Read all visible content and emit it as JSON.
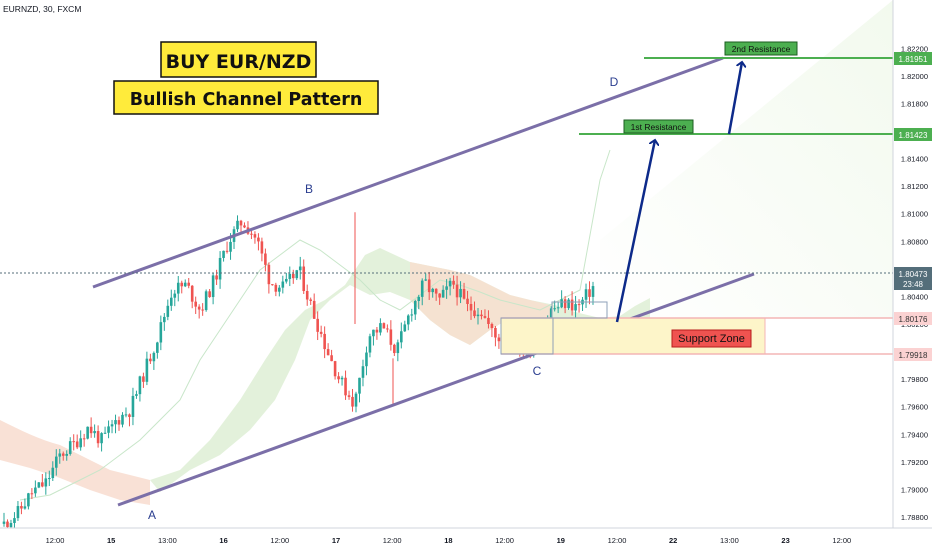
{
  "header": {
    "symbol_label": "EURNZD, 30, FXCM"
  },
  "annotations": {
    "title": "BUY EUR/NZD",
    "subtitle": "Bullish Channel Pattern",
    "first_resistance": "1st Resistance",
    "second_resistance": "2nd Resistance",
    "support_zone": "Support Zone",
    "points": {
      "a": "A",
      "b": "B",
      "c": "C",
      "d": "D"
    }
  },
  "price_badges": {
    "second_resistance": "1.81951",
    "first_resistance": "1.81423",
    "current_price": "1.80473",
    "countdown": "23:48",
    "support_top": "1.80176",
    "support_bottom": "1.79918"
  },
  "colors": {
    "bullish": "#26a69a",
    "bearish": "#ef5350",
    "channel": "#7b6fa8",
    "resistance": "#4caf50",
    "support_fill": "#fdf5c9",
    "support_line": "#f4b5b5",
    "arrow": "#0d2a8a",
    "label_yellow": "#ffeb3b",
    "current_price": "#546e7a"
  },
  "chart_data": {
    "type": "candlestick",
    "symbol": "EURNZD",
    "timeframe": "30",
    "source": "FXCM",
    "ylim": [
      1.7872,
      1.8255
    ],
    "y_ticks": [
      "1.82200",
      "1.82000",
      "1.81800",
      "1.81600",
      "1.81400",
      "1.81200",
      "1.81000",
      "1.80800",
      "1.80600",
      "1.80400",
      "1.80200",
      "1.80000",
      "1.79800",
      "1.79600",
      "1.79400",
      "1.79200",
      "1.79000",
      "1.78800"
    ],
    "x_ticks": [
      "12:00",
      "15",
      "13:00",
      "16",
      "12:00",
      "17",
      "12:00",
      "18",
      "12:00",
      "19",
      "12:00",
      "22",
      "13:00",
      "23",
      "12:00"
    ],
    "trend": [
      1.7875,
      1.7883,
      1.7898,
      1.7905,
      1.7925,
      1.7933,
      1.7945,
      1.7935,
      1.795,
      1.7958,
      1.7985,
      1.8012,
      1.8045,
      1.8048,
      1.803,
      1.8052,
      1.808,
      1.8095,
      1.8082,
      1.805,
      1.8046,
      1.806,
      1.803,
      1.8002,
      1.7978,
      1.7962,
      1.8012,
      1.8018,
      1.8,
      1.803,
      1.805,
      1.8036,
      1.805,
      1.8032,
      1.803,
      1.801,
      1.8012,
      1.8002,
      1.8008,
      1.803,
      1.8035,
      1.8033,
      1.8047
    ],
    "channel": {
      "upper": [
        {
          "t": "15 09:00",
          "price": 1.8035
        },
        {
          "t": "22 11:00",
          "price": 1.8197
        }
      ],
      "lower": [
        {
          "t": "15 04:00",
          "price": 1.7893
        },
        {
          "t": "22 13:00",
          "price": 1.8048
        }
      ]
    },
    "levels": {
      "second_resistance": 1.81951,
      "first_resistance": 1.81423,
      "current_price": 1.80473,
      "support_top": 1.80176,
      "support_bottom": 1.79918
    },
    "pivots": [
      {
        "label": "A",
        "price": 1.7888
      },
      {
        "label": "B",
        "price": 1.8096
      },
      {
        "label": "C",
        "price": 1.7991
      },
      {
        "label": "D",
        "price": 1.8195
      }
    ]
  }
}
